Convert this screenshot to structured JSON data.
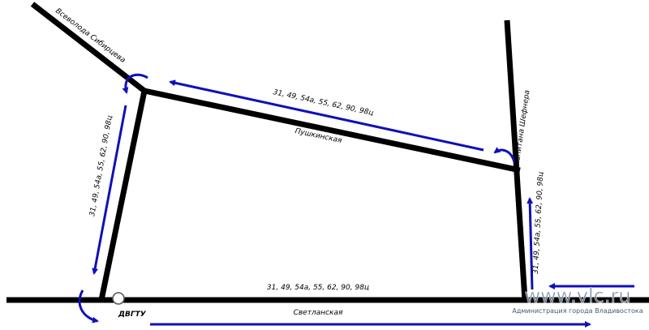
{
  "streets": [
    {
      "label": "Всеволода Сибирцева"
    },
    {
      "label": "Пушкинская"
    },
    {
      "label": "Капитана Шефнера"
    },
    {
      "label": "Светланская"
    }
  ],
  "stop": {
    "label": "ДВГТУ"
  },
  "route_labels": [
    "31, 49, 54а, 55, 62, 90, 98ц",
    "31, 49, 54а, 55, 62, 90, 98ц",
    "31, 49, 54а, 55, 62, 90, 98ц",
    "31, 49, 54а, 55, 62, 90, 98ц"
  ],
  "watermark": {
    "site": "www.vlc.ru",
    "owner": "Администрация города Владивостока"
  }
}
